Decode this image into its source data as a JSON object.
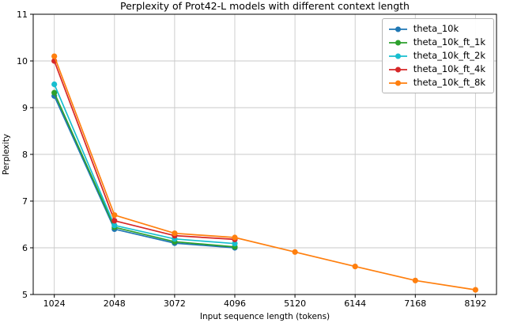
{
  "chart_data": {
    "type": "line",
    "title": "Perplexity of Prot42-L models with different context length",
    "xlabel": "Input sequence length (tokens)",
    "ylabel": "Perplexity",
    "xticks": [
      1024,
      2048,
      3072,
      4096,
      5120,
      6144,
      7168,
      8192
    ],
    "yticks": [
      5,
      6,
      7,
      8,
      9,
      10,
      11
    ],
    "xlim": [
      665,
      8550
    ],
    "ylim": [
      5,
      11
    ],
    "grid": true,
    "legend_position": "upper right",
    "series": [
      {
        "name": "theta_10k",
        "color": "#1f77b4",
        "x": [
          1024,
          2048,
          3072,
          4096
        ],
        "y": [
          9.25,
          6.4,
          6.1,
          6.0
        ]
      },
      {
        "name": "theta_10k_ft_1k",
        "color": "#2ca02c",
        "x": [
          1024,
          2048,
          3072,
          4096
        ],
        "y": [
          9.32,
          6.44,
          6.13,
          6.02
        ]
      },
      {
        "name": "theta_10k_ft_2k",
        "color": "#17becf",
        "x": [
          1024,
          2048,
          3072,
          4096
        ],
        "y": [
          9.5,
          6.48,
          6.19,
          6.09
        ]
      },
      {
        "name": "theta_10k_ft_4k",
        "color": "#d62728",
        "x": [
          1024,
          2048,
          3072,
          4096
        ],
        "y": [
          10.0,
          6.58,
          6.26,
          6.18
        ]
      },
      {
        "name": "theta_10k_ft_8k",
        "color": "#ff7f0e",
        "x": [
          1024,
          2048,
          3072,
          4096,
          5120,
          6144,
          7168,
          8192
        ],
        "y": [
          10.1,
          6.7,
          6.31,
          6.22,
          5.91,
          5.6,
          5.3,
          5.1
        ]
      }
    ]
  }
}
